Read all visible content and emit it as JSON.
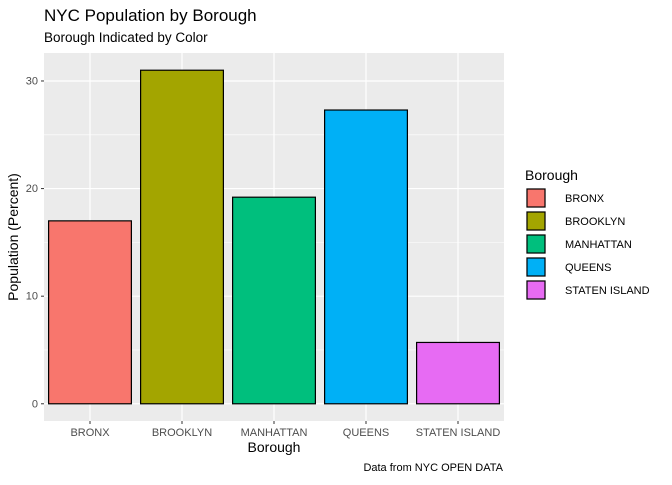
{
  "chart_data": {
    "type": "bar",
    "title": "NYC Population by Borough",
    "subtitle": "Borough Indicated by Color",
    "xlabel": "Borough",
    "ylabel": "Population (Percent)",
    "caption": "Data from NYC OPEN DATA",
    "categories": [
      "BRONX",
      "BROOKLYN",
      "MANHATTAN",
      "QUEENS",
      "STATEN ISLAND"
    ],
    "values": [
      17.0,
      31.0,
      19.2,
      27.3,
      5.7
    ],
    "colors": [
      "#F8766D",
      "#A3A500",
      "#00BF7D",
      "#00B0F6",
      "#E76BF3"
    ],
    "ylim": [
      0,
      32
    ],
    "yticks": [
      0,
      10,
      20,
      30
    ],
    "grid": true,
    "legend": {
      "title": "Borough",
      "position": "right",
      "entries": [
        "BRONX",
        "BROOKLYN",
        "MANHATTAN",
        "QUEENS",
        "STATEN ISLAND"
      ]
    }
  }
}
